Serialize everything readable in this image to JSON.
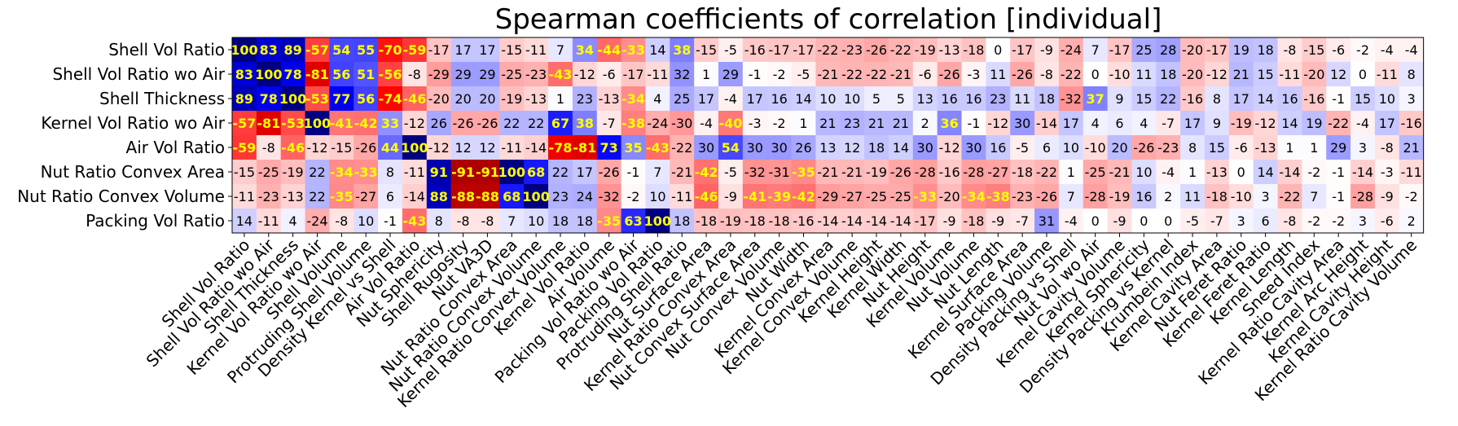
{
  "chart_data": {
    "type": "heatmap",
    "title": "Spearman coefficients of correlation [individual]",
    "rows": [
      "Shell Vol Ratio",
      "Shell Vol Ratio wo Air",
      "Shell Thickness",
      "Kernel Vol Ratio wo Air",
      "Air Vol Ratio",
      "Nut Ratio Convex Area",
      "Nut Ratio Convex Volume",
      "Packing Vol Ratio"
    ],
    "columns": [
      "Shell Vol Ratio",
      "Shell Vol Ratio wo Air",
      "Shell Thickness",
      "Kernel Vol Ratio wo Air",
      "Shell Volume",
      "Protruding Shell Volume",
      "Density Kernel vs Shell",
      "Air Vol Ratio",
      "Nut Sphericity",
      "Shell Rugosity",
      "Nut VA3D",
      "Nut Ratio Convex Area",
      "Nut Ratio Convex Volume",
      "Kernel Ratio Convex Volume",
      "Kernel Vol Ratio",
      "Air Volume",
      "Packing Vol Ratio wo Air",
      "Packing Vol Ratio",
      "Protruding Shell Ratio",
      "Nut Surface Area",
      "Kernel Ratio Convex Area",
      "Nut Convex Surface Area",
      "Nut Convex Volume",
      "Nut Width",
      "Kernel Convex Area",
      "Kernel Convex Volume",
      "Kernel Height",
      "Kernel Width",
      "Nut Height",
      "Kernel Volume",
      "Nut Volume",
      "Nut Length",
      "Kernel Surface Area",
      "Packing Volume",
      "Density Packing vs Shell",
      "Nut Vol wo Air",
      "Kernel Cavity Volume",
      "Kernel Sphericity",
      "Density Packing vs Kernel",
      "Krumbein Index",
      "Kernel Cavity Area",
      "Nut Feret Ratio",
      "Kernel Feret Ratio",
      "Kernel Length",
      "Sneed Index",
      "Kernel Ratio Cavity Area",
      "Kernel Arc Height",
      "Kernel Cavity Height",
      "Kernel Ratio Cavity Volume"
    ],
    "values": [
      [
        100,
        83,
        89,
        -57,
        54,
        55,
        -70,
        -59,
        -17,
        17,
        17,
        -15,
        -11,
        7,
        34,
        -44,
        -33,
        14,
        38,
        -15,
        -5,
        -16,
        -17,
        -17,
        -22,
        -23,
        -26,
        -22,
        -19,
        -13,
        -18,
        0,
        -17,
        -9,
        -24,
        7,
        -17,
        25,
        28,
        -20,
        -17,
        19,
        18,
        -8,
        -15,
        -6,
        -2,
        -4,
        -4
      ],
      [
        83,
        100,
        78,
        -81,
        56,
        51,
        -56,
        -8,
        -29,
        29,
        29,
        -25,
        -23,
        -43,
        -12,
        -6,
        -17,
        -11,
        32,
        1,
        29,
        -1,
        -2,
        -5,
        -21,
        -22,
        -22,
        -21,
        -6,
        -26,
        -3,
        11,
        -26,
        -8,
        -22,
        0,
        -10,
        11,
        18,
        -20,
        -12,
        21,
        15,
        -11,
        -20,
        12,
        0,
        -11,
        8
      ],
      [
        89,
        78,
        100,
        -53,
        77,
        56,
        -74,
        -46,
        -20,
        20,
        20,
        -19,
        -13,
        1,
        23,
        -13,
        -34,
        4,
        25,
        17,
        -4,
        17,
        16,
        14,
        10,
        10,
        5,
        5,
        13,
        16,
        16,
        23,
        11,
        18,
        -32,
        37,
        9,
        15,
        22,
        -16,
        8,
        17,
        14,
        16,
        -16,
        -1,
        15,
        10,
        3
      ],
      [
        -57,
        -81,
        -53,
        100,
        -41,
        -42,
        33,
        -12,
        26,
        -26,
        -26,
        22,
        22,
        67,
        38,
        -7,
        -38,
        -24,
        -30,
        -4,
        -40,
        -3,
        -2,
        1,
        21,
        23,
        21,
        21,
        2,
        36,
        -1,
        -12,
        30,
        -14,
        17,
        4,
        6,
        4,
        -7,
        17,
        9,
        -19,
        -12,
        14,
        19,
        -22,
        -4,
        17,
        -16
      ],
      [
        -59,
        -8,
        -46,
        -12,
        -15,
        -26,
        44,
        100,
        -12,
        12,
        12,
        -11,
        -14,
        -78,
        -81,
        73,
        35,
        -43,
        -22,
        30,
        54,
        30,
        30,
        26,
        13,
        12,
        18,
        14,
        30,
        -12,
        30,
        16,
        -5,
        6,
        10,
        -10,
        20,
        -26,
        -23,
        8,
        15,
        -6,
        -13,
        1,
        1,
        29,
        3,
        -8,
        21
      ],
      [
        -15,
        -25,
        -19,
        22,
        -34,
        -33,
        8,
        -11,
        91,
        -91,
        -91,
        100,
        68,
        22,
        17,
        -26,
        -1,
        7,
        -21,
        -42,
        -5,
        -32,
        -31,
        -35,
        -21,
        -21,
        -19,
        -26,
        -28,
        -16,
        -28,
        -27,
        -18,
        -22,
        1,
        -25,
        -21,
        10,
        -4,
        1,
        -13,
        0,
        14,
        -14,
        -2,
        -1,
        -14,
        -3,
        -11
      ],
      [
        -11,
        -23,
        -13,
        22,
        -35,
        -27,
        6,
        -14,
        88,
        -88,
        -88,
        68,
        100,
        23,
        24,
        -32,
        -2,
        10,
        -11,
        -46,
        -9,
        -41,
        -39,
        -42,
        -29,
        -27,
        -25,
        -25,
        -33,
        -20,
        -34,
        -38,
        -23,
        -26,
        7,
        -28,
        -19,
        16,
        2,
        11,
        -18,
        -10,
        3,
        -22,
        7,
        -1,
        -28,
        -9,
        -2
      ],
      [
        14,
        -11,
        4,
        -24,
        -8,
        10,
        -1,
        -43,
        8,
        -8,
        -8,
        7,
        10,
        18,
        18,
        -35,
        63,
        100,
        18,
        -18,
        -19,
        -18,
        -18,
        -16,
        -14,
        -14,
        -14,
        -14,
        -17,
        -9,
        -18,
        -9,
        -7,
        31,
        -4,
        0,
        -9,
        0,
        0,
        -5,
        -7,
        3,
        6,
        -8,
        -2,
        -2,
        3,
        -6,
        2
      ]
    ],
    "vmin": -100,
    "vmax": 100,
    "colormap": "bwr (positive = blue, negative = red)",
    "colors": {
      "positive": "#0000ff",
      "negative": "#ff0000",
      "neutral": "#ffffff",
      "strong_text": "#ffff00",
      "weak_text": "#000000"
    },
    "strong_threshold": 33
  }
}
